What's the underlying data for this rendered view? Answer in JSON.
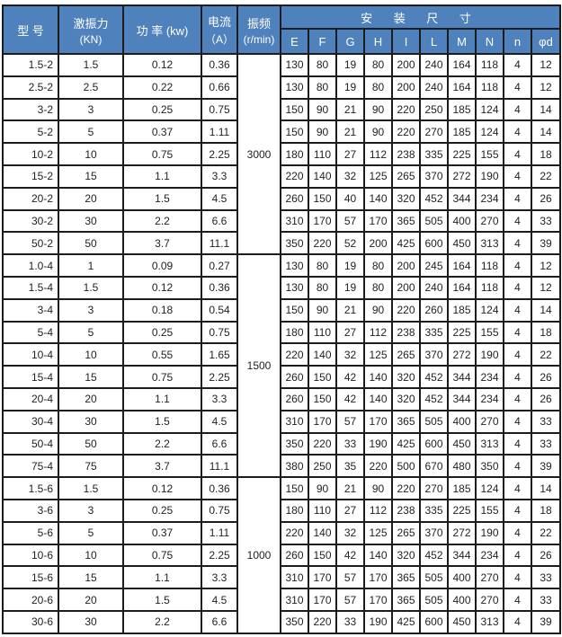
{
  "table": {
    "header": {
      "model_label": "型 号",
      "force_label_line1": "激振力",
      "force_label_line2": "(KN)",
      "power_label": "功 率 (kw)",
      "current_label_line1": "电流",
      "current_label_line2": "（A）",
      "freq_label_line1": "振频",
      "freq_label_line2": "(r/min)",
      "dims_title": "安 装 尺 寸",
      "dim_cols": [
        "E",
        "F",
        "G",
        "H",
        "I",
        "L",
        "M",
        "N",
        "n",
        "φd"
      ]
    },
    "colors": {
      "header_bg": "#4f81bd",
      "header_text": "#ffffff",
      "border": "#1c1c1c",
      "cell_bg": "#ffffff",
      "cell_text": "#1f1f1f"
    },
    "groups": [
      {
        "freq": "3000",
        "rows": [
          {
            "model": "1.5-2",
            "force": "1.5",
            "power": "0.12",
            "current": "0.36",
            "dims": [
              "130",
              "80",
              "19",
              "80",
              "200",
              "240",
              "164",
              "118",
              "4",
              "12"
            ]
          },
          {
            "model": "2.5-2",
            "force": "2.5",
            "power": "0.22",
            "current": "0.66",
            "dims": [
              "130",
              "80",
              "19",
              "80",
              "200",
              "240",
              "164",
              "118",
              "4",
              "12"
            ]
          },
          {
            "model": "3-2",
            "force": "3",
            "power": "0.25",
            "current": "0.75",
            "dims": [
              "150",
              "90",
              "21",
              "90",
              "220",
              "250",
              "185",
              "124",
              "4",
              "14"
            ]
          },
          {
            "model": "5-2",
            "force": "5",
            "power": "0.37",
            "current": "1.11",
            "dims": [
              "150",
              "90",
              "21",
              "90",
              "220",
              "270",
              "185",
              "124",
              "4",
              "14"
            ]
          },
          {
            "model": "10-2",
            "force": "10",
            "power": "0.75",
            "current": "2.25",
            "dims": [
              "180",
              "110",
              "27",
              "112",
              "238",
              "335",
              "225",
              "155",
              "4",
              "18"
            ]
          },
          {
            "model": "15-2",
            "force": "15",
            "power": "1.1",
            "current": "3.3",
            "dims": [
              "220",
              "140",
              "32",
              "125",
              "265",
              "370",
              "272",
              "190",
              "4",
              "22"
            ]
          },
          {
            "model": "20-2",
            "force": "20",
            "power": "1.5",
            "current": "4.5",
            "dims": [
              "260",
              "150",
              "40",
              "140",
              "320",
              "452",
              "344",
              "234",
              "4",
              "26"
            ]
          },
          {
            "model": "30-2",
            "force": "30",
            "power": "2.2",
            "current": "6.6",
            "dims": [
              "310",
              "170",
              "57",
              "170",
              "365",
              "505",
              "400",
              "270",
              "4",
              "33"
            ]
          },
          {
            "model": "50-2",
            "force": "50",
            "power": "3.7",
            "current": "11.1",
            "dims": [
              "350",
              "220",
              "52",
              "200",
              "425",
              "600",
              "450",
              "313",
              "4",
              "39"
            ]
          }
        ]
      },
      {
        "freq": "1500",
        "rows": [
          {
            "model": "1.0-4",
            "force": "1",
            "power": "0.09",
            "current": "0.27",
            "dims": [
              "130",
              "80",
              "19",
              "80",
              "200",
              "245",
              "164",
              "118",
              "4",
              "12"
            ]
          },
          {
            "model": "1.5-4",
            "force": "1.5",
            "power": "0.12",
            "current": "0.36",
            "dims": [
              "130",
              "80",
              "19",
              "80",
              "200",
              "240",
              "164",
              "118",
              "4",
              "12"
            ]
          },
          {
            "model": "3-4",
            "force": "3",
            "power": "0.18",
            "current": "0.54",
            "dims": [
              "150",
              "90",
              "21",
              "90",
              "220",
              "260",
              "185",
              "124",
              "4",
              "14"
            ]
          },
          {
            "model": "5-4",
            "force": "5",
            "power": "0.25",
            "current": "0.75",
            "dims": [
              "180",
              "110",
              "27",
              "112",
              "238",
              "335",
              "225",
              "155",
              "4",
              "18"
            ]
          },
          {
            "model": "10-4",
            "force": "10",
            "power": "0.55",
            "current": "1.65",
            "dims": [
              "220",
              "140",
              "32",
              "125",
              "265",
              "370",
              "272",
              "190",
              "4",
              "22"
            ]
          },
          {
            "model": "15-4",
            "force": "15",
            "power": "0.75",
            "current": "2.25",
            "dims": [
              "260",
              "150",
              "42",
              "140",
              "320",
              "452",
              "344",
              "234",
              "4",
              "26"
            ]
          },
          {
            "model": "20-4",
            "force": "20",
            "power": "1.1",
            "current": "3.3",
            "dims": [
              "260",
              "150",
              "42",
              "140",
              "320",
              "452",
              "344",
              "234",
              "4",
              "26"
            ]
          },
          {
            "model": "30-4",
            "force": "30",
            "power": "1.5",
            "current": "4.5",
            "dims": [
              "310",
              "170",
              "57",
              "170",
              "365",
              "505",
              "400",
              "270",
              "4",
              "33"
            ]
          },
          {
            "model": "50-4",
            "force": "50",
            "power": "2.2",
            "current": "6.6",
            "dims": [
              "350",
              "220",
              "33",
              "190",
              "425",
              "600",
              "450",
              "313",
              "4",
              "33"
            ]
          },
          {
            "model": "75-4",
            "force": "75",
            "power": "3.7",
            "current": "11.1",
            "dims": [
              "380",
              "250",
              "35",
              "220",
              "500",
              "670",
              "480",
              "350",
              "4",
              "39"
            ]
          }
        ]
      },
      {
        "freq": "1000",
        "rows": [
          {
            "model": "1.5-6",
            "force": "1.5",
            "power": "0.12",
            "current": "0.36",
            "dims": [
              "150",
              "90",
              "21",
              "90",
              "220",
              "270",
              "185",
              "124",
              "4",
              "14"
            ]
          },
          {
            "model": "3-6",
            "force": "3",
            "power": "0.25",
            "current": "0.75",
            "dims": [
              "180",
              "110",
              "27",
              "112",
              "238",
              "335",
              "225",
              "155",
              "4",
              "18"
            ]
          },
          {
            "model": "5-6",
            "force": "5",
            "power": "0.37",
            "current": "1.11",
            "dims": [
              "220",
              "140",
              "32",
              "125",
              "265",
              "370",
              "272",
              "190",
              "4",
              "22"
            ]
          },
          {
            "model": "10-6",
            "force": "10",
            "power": "0.75",
            "current": "2.25",
            "dims": [
              "260",
              "150",
              "42",
              "140",
              "320",
              "452",
              "344",
              "234",
              "4",
              "26"
            ]
          },
          {
            "model": "15-6",
            "force": "15",
            "power": "1.1",
            "current": "3.3",
            "dims": [
              "310",
              "170",
              "57",
              "170",
              "365",
              "505",
              "400",
              "270",
              "4",
              "33"
            ]
          },
          {
            "model": "20-6",
            "force": "20",
            "power": "1.5",
            "current": "4.5",
            "dims": [
              "310",
              "170",
              "57",
              "170",
              "365",
              "505",
              "400",
              "270",
              "4",
              "33"
            ]
          },
          {
            "model": "30-6",
            "force": "30",
            "power": "2.2",
            "current": "6.6",
            "dims": [
              "350",
              "220",
              "33",
              "190",
              "425",
              "600",
              "450",
              "313",
              "4",
              "39"
            ]
          }
        ]
      }
    ]
  }
}
